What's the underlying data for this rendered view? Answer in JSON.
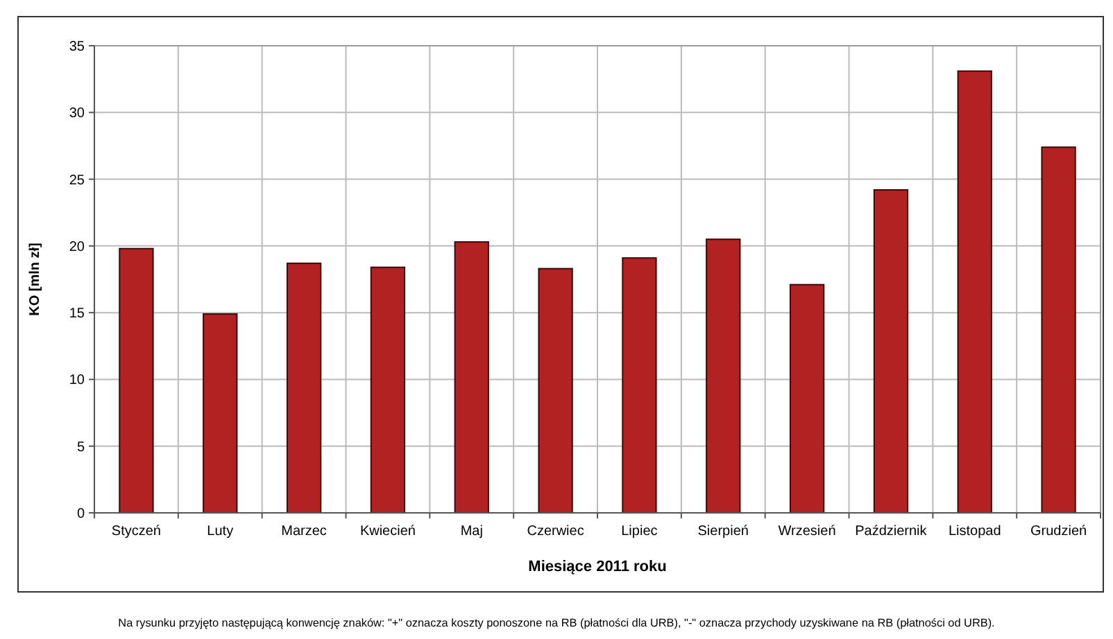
{
  "chart_data": {
    "type": "bar",
    "ylabel": "KO [mln zł]",
    "xlabel": "Miesiące 2011 roku",
    "categories": [
      "Styczeń",
      "Luty",
      "Marzec",
      "Kwiecień",
      "Maj",
      "Czerwiec",
      "Lipiec",
      "Sierpień",
      "Wrzesień",
      "Październik",
      "Listopad",
      "Grudzień"
    ],
    "values": [
      19.8,
      14.9,
      18.7,
      18.4,
      20.3,
      18.3,
      19.1,
      20.5,
      17.1,
      24.2,
      33.1,
      27.4
    ],
    "color": "#b22222",
    "ylim": [
      0,
      35
    ],
    "yticks": [
      0,
      5,
      10,
      15,
      20,
      25,
      30,
      35
    ],
    "grid": true,
    "annotations": [
      "Na rysunku przyjęto następującą konwencję znaków: \"+\" oznacza koszty ponoszone na RB (płatności dla URB), \"-\" oznacza przychody uzyskiwane na RB (płatności od URB)."
    ]
  }
}
